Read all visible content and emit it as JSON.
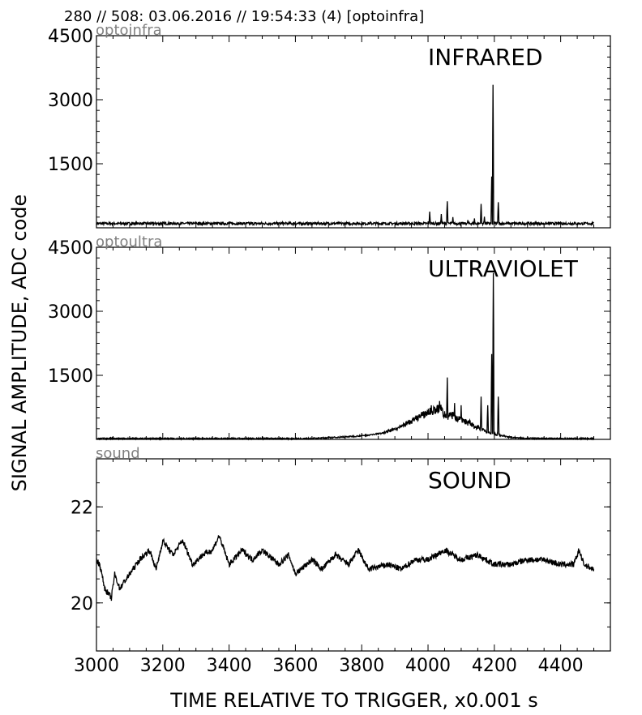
{
  "header": "280 // 508:   03.06.2016 // 19:54:33 (4)  [optoinfra]",
  "ylabel": "SIGNAL AMPLITUDE,  ADC code",
  "xlabel": "TIME RELATIVE TO TRIGGER,   x0.001 s",
  "xlim": [
    3000,
    4550
  ],
  "xticks": [
    "3000",
    "3200",
    "3400",
    "3600",
    "3800",
    "4000",
    "4200",
    "4400"
  ],
  "chart_data": [
    {
      "type": "line",
      "channel": "optoinfra",
      "title": "INFRARED",
      "ylim": [
        0,
        4500
      ],
      "yticks": [
        "1500",
        "3000",
        "4500"
      ],
      "baseline": 100,
      "noise": 30,
      "x_range": [
        3000,
        4500
      ],
      "spikes": [
        [
          4005,
          380
        ],
        [
          4040,
          320
        ],
        [
          4058,
          620
        ],
        [
          4075,
          250
        ],
        [
          4120,
          180
        ],
        [
          4140,
          220
        ],
        [
          4160,
          560
        ],
        [
          4170,
          260
        ],
        [
          4192,
          1200
        ],
        [
          4196,
          3350
        ],
        [
          4212,
          600
        ]
      ]
    },
    {
      "type": "line",
      "channel": "optoultra",
      "title": "ULTRAVIOLET",
      "ylim": [
        0,
        4500
      ],
      "yticks": [
        "1500",
        "3000",
        "4500"
      ],
      "baseline": 20,
      "noise": 15,
      "x_range": [
        3000,
        4500
      ],
      "hump": {
        "center": 4045,
        "width": 120,
        "height": 550
      },
      "spikes": [
        [
          3960,
          300
        ],
        [
          4010,
          800
        ],
        [
          4035,
          900
        ],
        [
          4058,
          1450
        ],
        [
          4080,
          850
        ],
        [
          4100,
          800
        ],
        [
          4140,
          200
        ],
        [
          4160,
          1000
        ],
        [
          4180,
          800
        ],
        [
          4192,
          2000
        ],
        [
          4197,
          3900
        ],
        [
          4212,
          1000
        ]
      ]
    },
    {
      "type": "line",
      "channel": "sound",
      "title": "SOUND",
      "ylim": [
        19,
        23
      ],
      "yticks": [
        "20",
        "22"
      ],
      "x_range": [
        3000,
        4500
      ],
      "anchors": [
        [
          3000,
          20.9
        ],
        [
          3010,
          20.8
        ],
        [
          3025,
          20.3
        ],
        [
          3045,
          20.1
        ],
        [
          3055,
          20.6
        ],
        [
          3070,
          20.3
        ],
        [
          3100,
          20.6
        ],
        [
          3130,
          20.9
        ],
        [
          3160,
          21.1
        ],
        [
          3180,
          20.7
        ],
        [
          3200,
          21.3
        ],
        [
          3230,
          21.0
        ],
        [
          3260,
          21.3
        ],
        [
          3290,
          20.8
        ],
        [
          3320,
          21.0
        ],
        [
          3350,
          21.1
        ],
        [
          3370,
          21.4
        ],
        [
          3400,
          20.8
        ],
        [
          3440,
          21.1
        ],
        [
          3470,
          20.9
        ],
        [
          3500,
          21.1
        ],
        [
          3550,
          20.8
        ],
        [
          3580,
          21.0
        ],
        [
          3600,
          20.6
        ],
        [
          3650,
          20.9
        ],
        [
          3680,
          20.7
        ],
        [
          3720,
          21.0
        ],
        [
          3760,
          20.8
        ],
        [
          3790,
          21.1
        ],
        [
          3820,
          20.7
        ],
        [
          3880,
          20.8
        ],
        [
          3920,
          20.7
        ],
        [
          3960,
          20.9
        ],
        [
          4000,
          20.9
        ],
        [
          4050,
          21.1
        ],
        [
          4100,
          20.9
        ],
        [
          4150,
          21.0
        ],
        [
          4200,
          20.8
        ],
        [
          4250,
          20.8
        ],
        [
          4300,
          20.9
        ],
        [
          4350,
          20.9
        ],
        [
          4400,
          20.8
        ],
        [
          4440,
          20.8
        ],
        [
          4455,
          21.1
        ],
        [
          4470,
          20.8
        ],
        [
          4500,
          20.7
        ]
      ]
    }
  ]
}
